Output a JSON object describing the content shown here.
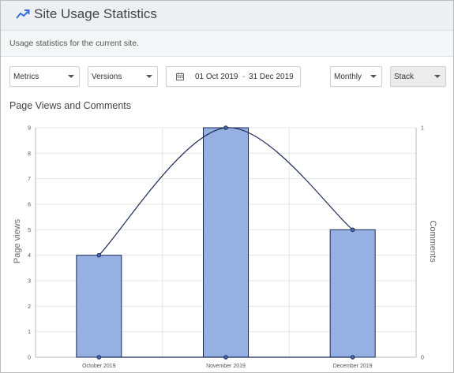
{
  "header": {
    "title": "Site Usage Statistics",
    "icon": "trending-up-icon"
  },
  "description": "Usage statistics for the current site.",
  "filters": {
    "metrics": {
      "value": "Metrics"
    },
    "versions": {
      "value": "Versions"
    },
    "date_range": {
      "start": "01 Oct 2019",
      "separator": "-",
      "end": "31 Dec 2019"
    },
    "interval": {
      "value": "Monthly"
    },
    "mode": {
      "value": "Stack"
    }
  },
  "chart_title": "Page Views and Comments",
  "chart_data": {
    "type": "bar",
    "categories": [
      "October 2019",
      "November 2019",
      "December 2019"
    ],
    "series": [
      {
        "name": "Page views",
        "type": "bar",
        "axis": "left",
        "values": [
          4,
          9,
          5
        ],
        "color": "#96b0e4"
      },
      {
        "name": "Comments",
        "type": "line",
        "axis": "right",
        "values": [
          0,
          0,
          0
        ],
        "color": "#1c2a55"
      },
      {
        "type": "line",
        "smooth": true,
        "axis": "left",
        "values": [
          4,
          9,
          5
        ],
        "color": "#1c2a55"
      }
    ],
    "y_left": {
      "label": "Page views",
      "min": 0,
      "max": 9,
      "ticks": [
        0,
        1,
        2,
        3,
        4,
        5,
        6,
        7,
        8,
        9
      ]
    },
    "y_right": {
      "label": "Comments",
      "min": 0,
      "max": 1,
      "ticks": [
        0,
        1
      ]
    },
    "grid": true
  }
}
